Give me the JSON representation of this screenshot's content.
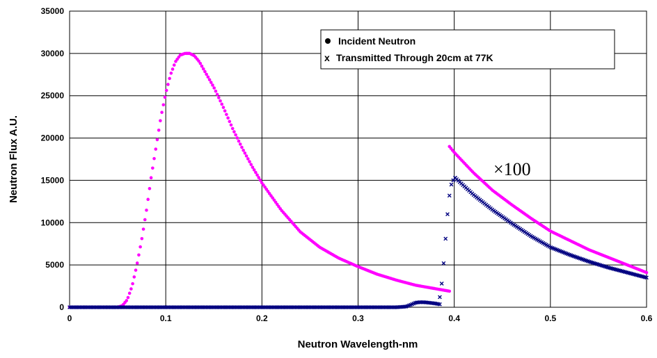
{
  "chart_data": {
    "type": "scatter",
    "xlabel": "Neutron Wavelength-nm",
    "ylabel": "Neutron Flux A.U.",
    "xlim": [
      0,
      0.6
    ],
    "ylim": [
      0,
      35000
    ],
    "x_ticks": [
      "0",
      "0.1",
      "0.2",
      "0.3",
      "0.4",
      "0.5",
      "0.6"
    ],
    "y_ticks": [
      "0",
      "5000",
      "10000",
      "15000",
      "20000",
      "25000",
      "30000",
      "35000"
    ],
    "grid": true,
    "legend_position": "top-right",
    "annotation": "×100",
    "series": [
      {
        "name": "Incident Neutron",
        "marker": "dot",
        "color": "#ff00ff",
        "segments": [
          {
            "x": [
              0,
              0.05,
              0.055,
              0.06,
              0.065,
              0.07,
              0.075,
              0.08,
              0.085,
              0.09,
              0.095,
              0.1,
              0.105,
              0.11,
              0.115,
              0.12,
              0.125,
              0.13,
              0.135,
              0.14,
              0.15,
              0.16,
              0.17,
              0.18,
              0.19,
              0.2,
              0.22,
              0.24,
              0.26,
              0.28,
              0.3,
              0.32,
              0.34,
              0.36,
              0.38,
              0.395
            ],
            "y": [
              0,
              0,
              200,
              900,
              2500,
              5000,
              8000,
              11500,
              15500,
              19000,
              22500,
              25300,
              27500,
              29000,
              29800,
              30000,
              30000,
              29700,
              29000,
              28000,
              26000,
              23600,
              21000,
              18700,
              16600,
              14700,
              11500,
              8900,
              7100,
              5800,
              4800,
              3900,
              3200,
              2600,
              2200,
              1900
            ]
          },
          {
            "x": [
              0.395,
              0.4,
              0.42,
              0.44,
              0.46,
              0.48,
              0.5,
              0.52,
              0.54,
              0.56,
              0.58,
              0.6
            ],
            "y": [
              19000,
              18300,
              15900,
              13800,
              12100,
              10500,
              9000,
              7900,
              6800,
              5900,
              5000,
              4100
            ]
          }
        ]
      },
      {
        "name": "Transmitted Through 20cm at 77K",
        "marker": "x",
        "color": "#000080",
        "segments": [
          {
            "x": [
              0,
              0.05,
              0.1,
              0.15,
              0.2,
              0.25,
              0.3,
              0.34,
              0.35,
              0.355,
              0.36,
              0.365,
              0.37,
              0.375,
              0.38,
              0.385
            ],
            "y": [
              0,
              0,
              0,
              0,
              0,
              0,
              0,
              0,
              80,
              300,
              550,
              600,
              580,
              520,
              450,
              350
            ]
          },
          {
            "x": [
              0.385,
              0.387,
              0.389,
              0.391,
              0.393,
              0.395,
              0.397,
              0.399,
              0.401
            ],
            "y": [
              1200,
              2800,
              5200,
              8100,
              11000,
              13200,
              14500,
              15000,
              15300
            ]
          },
          {
            "x": [
              0.401,
              0.42,
              0.44,
              0.46,
              0.48,
              0.5,
              0.52,
              0.54,
              0.56,
              0.58,
              0.6
            ],
            "y": [
              15300,
              13300,
              11500,
              9900,
              8400,
              7100,
              6200,
              5400,
              4700,
              4100,
              3500
            ]
          }
        ]
      }
    ]
  }
}
